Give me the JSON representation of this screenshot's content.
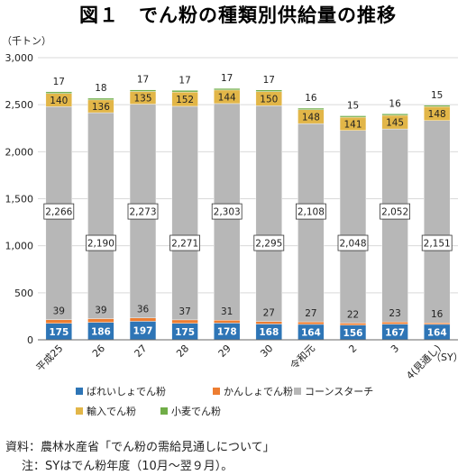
{
  "chart_data": {
    "type": "bar",
    "stacked": true,
    "title": "図１　でん粉の種類別供給量の推移",
    "unit_label": "（千トン）",
    "x_unit_label": "（SY）",
    "ylim": [
      0,
      3000
    ],
    "yticks": [
      0,
      500,
      1000,
      1500,
      2000,
      2500,
      3000
    ],
    "ytick_labels": [
      "0",
      "500",
      "1,000",
      "1,500",
      "2,000",
      "2,500",
      "3,000"
    ],
    "categories": [
      "平成25",
      "26",
      "27",
      "28",
      "29",
      "30",
      "令和元",
      "2",
      "3",
      "4(見通し)"
    ],
    "series": [
      {
        "name": "ばれいしょでん粉",
        "color": "#2e75b6",
        "values": [
          175,
          186,
          197,
          175,
          178,
          168,
          164,
          156,
          167,
          164
        ]
      },
      {
        "name": "かんしょでん粉",
        "color": "#ed7d31",
        "values": [
          39,
          39,
          36,
          37,
          31,
          27,
          27,
          22,
          23,
          16
        ]
      },
      {
        "name": "コーンスターチ",
        "color": "#b7b7b7",
        "values": [
          2266,
          2190,
          2273,
          2271,
          2303,
          2295,
          2108,
          2048,
          2052,
          2151
        ]
      },
      {
        "name": "輸入でん粉",
        "color": "#e2b648",
        "values": [
          140,
          136,
          135,
          152,
          144,
          150,
          148,
          141,
          145,
          148
        ]
      },
      {
        "name": "小麦でん粉",
        "color": "#70ad47",
        "values": [
          17,
          18,
          17,
          17,
          17,
          17,
          16,
          15,
          16,
          15
        ]
      }
    ]
  },
  "notes": {
    "source": "資料：農林水産省「でん粉の需給見通しについて」",
    "note": "注：SYはでん粉年度（10月～翌９月）。"
  }
}
